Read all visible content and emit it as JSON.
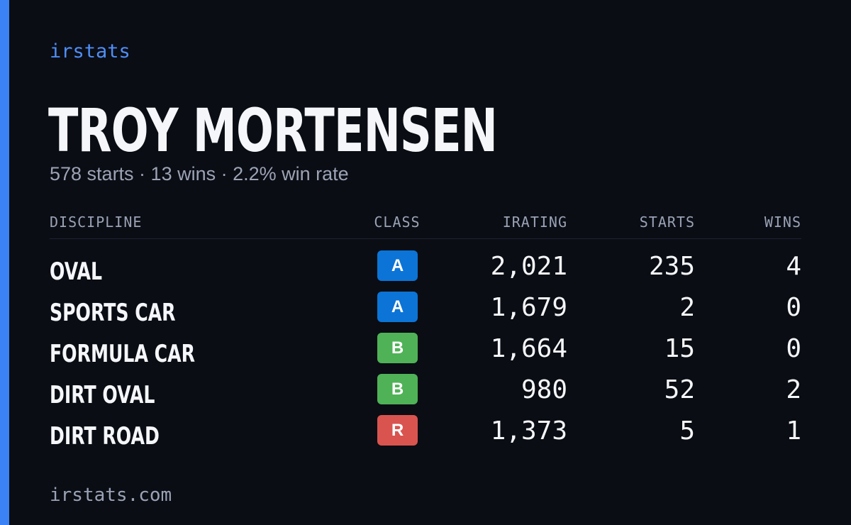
{
  "brand": "irstats",
  "driver": {
    "name": "TROY MORTENSEN",
    "summary": "578 starts · 13 wins · 2.2% win rate"
  },
  "table": {
    "headers": {
      "discipline": "DISCIPLINE",
      "class": "CLASS",
      "irating": "IRATING",
      "starts": "STARTS",
      "wins": "WINS"
    },
    "rows": [
      {
        "discipline": "OVAL",
        "class": "A",
        "class_color": "#0b74d6",
        "irating": "2,021",
        "starts": "235",
        "wins": "4"
      },
      {
        "discipline": "SPORTS CAR",
        "class": "A",
        "class_color": "#0b74d6",
        "irating": "1,679",
        "starts": "2",
        "wins": "0"
      },
      {
        "discipline": "FORMULA CAR",
        "class": "B",
        "class_color": "#4fb256",
        "irating": "1,664",
        "starts": "15",
        "wins": "0"
      },
      {
        "discipline": "DIRT OVAL",
        "class": "B",
        "class_color": "#4fb256",
        "irating": "980",
        "starts": "52",
        "wins": "2"
      },
      {
        "discipline": "DIRT ROAD",
        "class": "R",
        "class_color": "#d9534f",
        "irating": "1,373",
        "starts": "5",
        "wins": "1"
      }
    ]
  },
  "footer": "irstats.com",
  "colors": {
    "accent": "#3b82f6",
    "background": "#0a0d14"
  }
}
